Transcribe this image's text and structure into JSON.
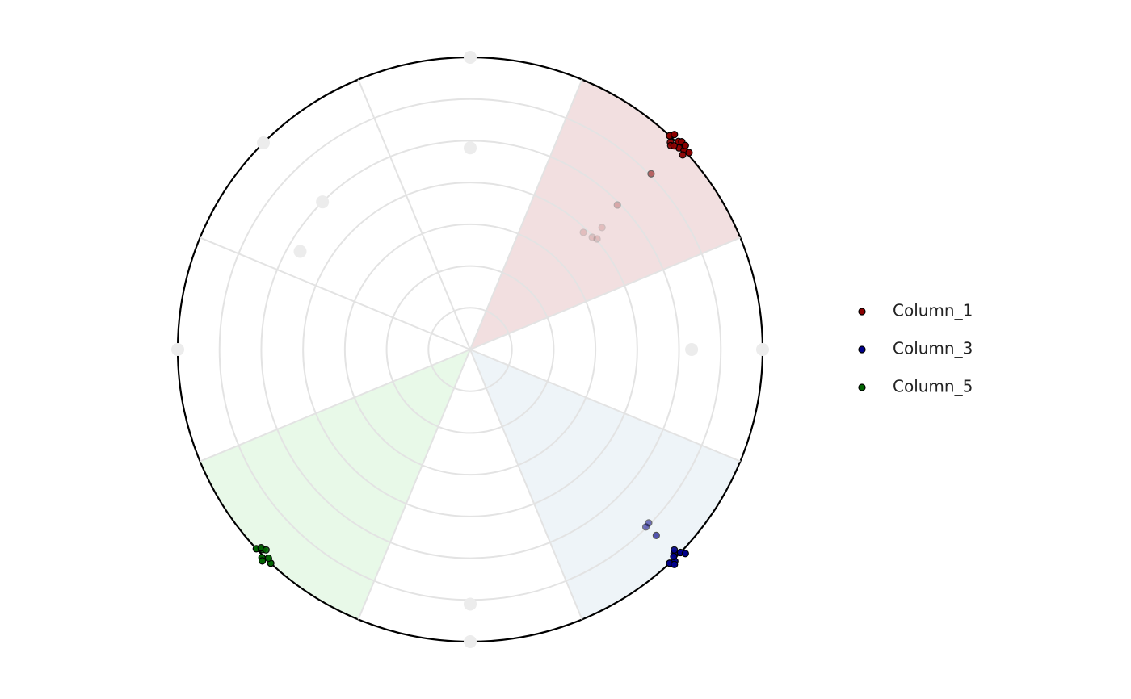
{
  "chart_data": {
    "type": "polar-scatter",
    "rlim": [
      0,
      7
    ],
    "rticks": [
      1,
      2,
      3,
      4,
      5,
      6,
      7
    ],
    "angle_ticks": [
      22.5,
      67.5,
      112.5,
      157.5,
      202.5,
      247.5,
      292.5,
      337.5
    ],
    "series": [
      {
        "name": "Column_1",
        "color": "#8b0000",
        "sector_angle": 45,
        "sector_color": "#f2dfe0",
        "theta": [
          43,
          44,
          45,
          46,
          47,
          48,
          43.5,
          45.5,
          47.5,
          44.5,
          46.5,
          45,
          45.8,
          45.5,
          47.2,
          44,
          47.4,
          48.9
        ],
        "r": [
          7.0,
          6.9,
          7.05,
          6.95,
          7.0,
          7.05,
          7.1,
          7.1,
          6.9,
          6.85,
          7.1,
          6.9,
          6.04,
          4.94,
          4.3,
          3.9,
          3.97,
          4.03
        ]
      },
      {
        "name": "Column_3",
        "color": "#00008b",
        "sector_angle": 135,
        "sector_color": "#eef4f8",
        "theta": [
          134,
          135,
          136,
          133.5,
          135.5,
          137,
          134.5,
          136.5,
          134.2,
          135,
          135.3
        ],
        "r": [
          7.0,
          6.9,
          7.05,
          7.1,
          6.95,
          7.0,
          6.85,
          7.1,
          5.96,
          6.3,
          5.98
        ]
      },
      {
        "name": "Column_5",
        "color": "#006400",
        "sector_angle": 225,
        "sector_color": "#e8f9e8",
        "theta": [
          223,
          224,
          225,
          226,
          227,
          224.5,
          226.5,
          225.5
        ],
        "r": [
          7.0,
          6.95,
          7.05,
          6.9,
          7.0,
          7.1,
          6.9,
          6.85
        ]
      },
      {
        "name": null,
        "color": "#ececec",
        "theta": [
          0,
          90,
          180,
          270,
          315,
          0,
          315,
          300,
          90,
          180
        ],
        "r": [
          7,
          7,
          7,
          7,
          7,
          4.83,
          5.0,
          4.7,
          5.3,
          6.1
        ]
      }
    ]
  }
}
